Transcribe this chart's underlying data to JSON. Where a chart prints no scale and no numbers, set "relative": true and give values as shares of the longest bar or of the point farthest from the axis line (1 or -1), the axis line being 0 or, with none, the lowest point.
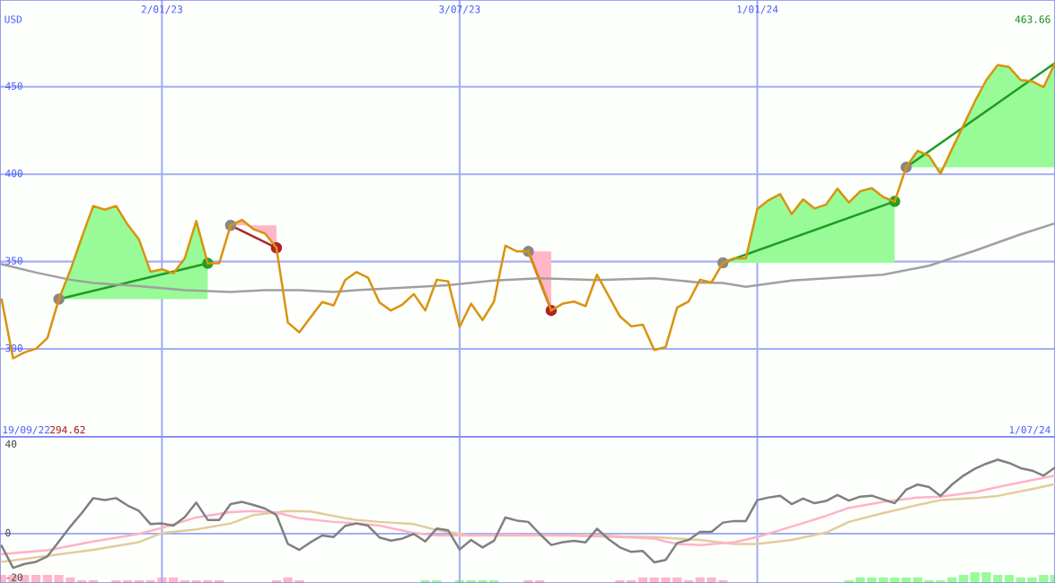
{
  "chart_data": [
    {
      "type": "line",
      "xlim": [
        "2022-09-25",
        "2024-07-01"
      ],
      "xticks": [
        {
          "value": "2023-01-02",
          "label": "2/01/23"
        },
        {
          "value": "2023-07-03",
          "label": "3/07/23"
        },
        {
          "value": "2024-01-01",
          "label": "1/01/24"
        }
      ],
      "ylim": [
        249.7,
        499.7
      ],
      "yticks": [
        300,
        350,
        400,
        450
      ],
      "grid": true,
      "annotations": [
        "USD",
        "463.66",
        "19/09/22",
        "294.62",
        "1/07/24"
      ],
      "series": [
        {
          "color": "#a0a0a0",
          "x": [
            "2022-09-26",
            "2022-10-17",
            "2022-11-07",
            "2022-11-21",
            "2022-12-19",
            "2023-01-16",
            "2023-02-13",
            "2023-03-06",
            "2023-03-27",
            "2023-04-17",
            "2023-05-01",
            "2023-05-29",
            "2023-06-26",
            "2023-07-24",
            "2023-08-21",
            "2023-09-25",
            "2023-10-30",
            "2023-11-27",
            "2023-12-11",
            "2023-12-25",
            "2024-01-22",
            "2024-02-19",
            "2024-03-18",
            "2024-04-15",
            "2024-05-13",
            "2024-06-10",
            "2024-07-01"
          ],
          "values": [
            348.5,
            343.7,
            339.6,
            337.7,
            336.0,
            333.6,
            332.6,
            333.6,
            333.6,
            332.6,
            333.6,
            335.1,
            336.5,
            339.1,
            340.4,
            339.4,
            340.4,
            338.0,
            337.7,
            335.6,
            339.1,
            340.8,
            342.5,
            347.6,
            356.2,
            365.6,
            371.9
          ]
        },
        {
          "color": "#d9930d",
          "x": [
            "2022-09-26",
            "2022-10-03",
            "2022-10-10",
            "2022-10-17",
            "2022-10-24",
            "2022-10-31"
          ],
          "values": [
            328.3,
            294.62,
            298.0,
            300.1,
            306.2,
            328.5
          ]
        },
        {
          "color": "#d9930d",
          "x": [
            "2022-10-31",
            "2022-11-07",
            "2022-11-14",
            "2022-11-21",
            "2022-11-28",
            "2022-12-05",
            "2022-12-12",
            "2022-12-19",
            "2022-12-26",
            "2023-01-02",
            "2023-01-09",
            "2023-01-16",
            "2023-01-23",
            "2023-01-30"
          ],
          "values": [
            328.5,
            345.0,
            363.8,
            381.8,
            379.7,
            381.8,
            371.2,
            362.6,
            344.2,
            345.6,
            343.3,
            351.9,
            373.2,
            349.0
          ],
          "lower": [
            328.5,
            328.5,
            328.5,
            328.5,
            328.5,
            328.5,
            328.5,
            328.5,
            328.5,
            328.5,
            328.5,
            328.5,
            328.5,
            328.5
          ],
          "upper": [
            328.5,
            345.0,
            363.8,
            381.8,
            379.7,
            381.8,
            371.2,
            362.6,
            344.2,
            345.6,
            343.3,
            351.9,
            373.2,
            349.0
          ]
        },
        {
          "color": "#d9930d",
          "x": [
            "2023-01-30",
            "2023-02-06",
            "2023-02-13"
          ],
          "values": [
            349.0,
            349.0,
            370.7
          ]
        },
        {
          "color": "#d9930d",
          "x": [
            "2023-02-13",
            "2023-02-20",
            "2023-02-27",
            "2023-03-06",
            "2023-03-13"
          ],
          "values": [
            370.7,
            373.8,
            368.5,
            366.1,
            357.9
          ],
          "lower": [
            370.7,
            370.7,
            370.7,
            370.7,
            370.7
          ],
          "upper": [
            370.7,
            373.8,
            368.5,
            366.1,
            357.9
          ]
        },
        {
          "color": "#d9930d",
          "x": [
            "2023-03-13",
            "2023-03-20",
            "2023-03-27",
            "2023-04-03",
            "2023-04-10",
            "2023-04-17",
            "2023-04-24",
            "2023-05-01",
            "2023-05-08",
            "2023-05-15",
            "2023-05-22",
            "2023-05-29",
            "2023-06-05",
            "2023-06-12",
            "2023-06-19",
            "2023-06-26",
            "2023-07-03",
            "2023-07-10",
            "2023-07-17",
            "2023-07-24",
            "2023-07-31",
            "2023-08-07",
            "2023-08-14"
          ],
          "values": [
            357.9,
            315.1,
            309.5,
            318.2,
            326.8,
            324.9,
            339.4,
            344.0,
            340.8,
            326.6,
            322.0,
            325.4,
            331.4,
            322.0,
            339.6,
            338.7,
            312.6,
            325.9,
            316.5,
            327.1,
            359.1,
            355.8,
            355.8
          ]
        },
        {
          "color": "#d9930d",
          "x": [
            "2023-08-14",
            "2023-08-21",
            "2023-08-28"
          ],
          "values": [
            355.8,
            339.7,
            322.0
          ],
          "lower": [
            355.8,
            355.8,
            355.8
          ],
          "upper": [
            355.8,
            339.7,
            322.0
          ]
        },
        {
          "color": "#d9930d",
          "x": [
            "2023-08-28",
            "2023-09-04",
            "2023-09-11",
            "2023-09-18",
            "2023-09-25",
            "2023-10-02",
            "2023-10-09",
            "2023-10-16",
            "2023-10-23",
            "2023-10-30",
            "2023-11-06",
            "2023-11-13",
            "2023-11-20",
            "2023-11-27",
            "2023-12-04",
            "2023-12-11"
          ],
          "values": [
            322.0,
            325.9,
            327.1,
            324.5,
            342.5,
            330.5,
            318.6,
            312.9,
            313.9,
            299.4,
            301.1,
            323.7,
            327.1,
            339.6,
            338.0,
            349.3
          ]
        },
        {
          "color": "#d9930d",
          "x": [
            "2023-12-11",
            "2023-12-18",
            "2023-12-25",
            "2024-01-01",
            "2024-01-08",
            "2024-01-15",
            "2024-01-22",
            "2024-01-29",
            "2024-02-05",
            "2024-02-12",
            "2024-02-19",
            "2024-02-26",
            "2024-03-04",
            "2024-03-11",
            "2024-03-18",
            "2024-03-25"
          ],
          "values": [
            349.3,
            351.9,
            351.9,
            380.1,
            385.2,
            388.6,
            377.2,
            385.6,
            380.4,
            382.6,
            391.7,
            383.8,
            390.3,
            392.0,
            386.9,
            384.4
          ],
          "lower": [
            349.3,
            349.3,
            349.3,
            349.3,
            349.3,
            349.3,
            349.3,
            349.3,
            349.3,
            349.3,
            349.3,
            349.3,
            349.3,
            349.3,
            349.3,
            349.3
          ],
          "upper": [
            349.3,
            351.9,
            351.9,
            380.1,
            385.2,
            388.6,
            377.2,
            385.6,
            380.4,
            382.6,
            391.7,
            383.8,
            390.3,
            392.0,
            386.9,
            384.4
          ]
        },
        {
          "color": "#d9930d",
          "x": [
            "2024-03-25",
            "2024-04-01"
          ],
          "values": [
            384.4,
            404.0
          ]
        },
        {
          "color": "#d9930d",
          "x": [
            "2024-04-01",
            "2024-04-08",
            "2024-04-15",
            "2024-04-22",
            "2024-04-29",
            "2024-05-06",
            "2024-05-13",
            "2024-05-20",
            "2024-05-27",
            "2024-06-03",
            "2024-06-10",
            "2024-06-17",
            "2024-06-24",
            "2024-07-01"
          ],
          "values": [
            404.0,
            413.4,
            410.5,
            400.3,
            414.3,
            427.9,
            441.6,
            453.9,
            462.5,
            461.3,
            453.9,
            453.2,
            449.8,
            463.66
          ],
          "lower": [
            404.0,
            404.0,
            404.0,
            404.0,
            404.0,
            404.0,
            404.0,
            404.0,
            404.0,
            404.0,
            404.0,
            404.0,
            404.0,
            404.0
          ],
          "upper": [
            404.0,
            413.4,
            410.5,
            400.3,
            414.3,
            427.9,
            441.6,
            453.9,
            462.5,
            461.3,
            453.9,
            453.2,
            449.8,
            463.66
          ]
        },
        {
          "color": "#229a22",
          "marker": "circle",
          "x": [
            "2022-10-31",
            "2023-01-30"
          ],
          "values": [
            328.5,
            349.0
          ],
          "colors": [
            "#888888",
            "#22a022"
          ]
        },
        {
          "color": "#a52a2a",
          "marker": "circle",
          "x": [
            "2023-02-13",
            "2023-03-13"
          ],
          "values": [
            370.7,
            357.9
          ],
          "colors": [
            "#888888",
            "#b22222"
          ]
        },
        {
          "color": "#a52a2a",
          "marker": "circle",
          "x": [
            "2023-08-14",
            "2023-08-28"
          ],
          "values": [
            355.8,
            322.0
          ],
          "colors": [
            "#888888",
            "#b22222"
          ]
        },
        {
          "color": "#229a22",
          "marker": "circle",
          "x": [
            "2023-12-11",
            "2024-03-25"
          ],
          "values": [
            349.3,
            384.4
          ],
          "colors": [
            "#888888",
            "#22a022"
          ]
        },
        {
          "color": "#229a22",
          "marker": "circle",
          "x": [
            "2024-04-01",
            "2024-07-01"
          ],
          "values": [
            404.0,
            463.66
          ],
          "colors": [
            "#888888",
            null
          ]
        }
      ]
    },
    {
      "type": "line",
      "xlim": [
        "2022-09-25",
        "2024-07-01"
      ],
      "xticks": [
        {
          "value": "2023-01-02",
          "label": null
        },
        {
          "value": "2023-07-03",
          "label": null
        },
        {
          "value": "2024-01-01",
          "label": null
        }
      ],
      "ylim": [
        -22.2,
        43.6
      ],
      "yticks": [
        -20,
        0,
        40
      ],
      "grid": "x",
      "tick_labels": "y",
      "ref_lines": [
        {
          "axis": "y",
          "value": 0
        }
      ],
      "series": [
        {
          "color": "#e3cc9c",
          "x": [
            "2022-09-26",
            "2022-10-24",
            "2022-11-21",
            "2022-12-19",
            "2023-01-02",
            "2023-01-23",
            "2023-02-13",
            "2023-02-27",
            "2023-03-20",
            "2023-04-03",
            "2023-04-24",
            "2023-05-01",
            "2023-05-15",
            "2023-06-05",
            "2023-06-19",
            "2023-07-10",
            "2023-07-31",
            "2023-09-04",
            "2023-09-18",
            "2023-10-09",
            "2023-10-30",
            "2023-11-13",
            "2023-11-27",
            "2023-12-18",
            "2024-01-01",
            "2024-01-22",
            "2024-02-12",
            "2024-02-26",
            "2024-03-18",
            "2024-04-08",
            "2024-04-22",
            "2024-05-13",
            "2024-05-27",
            "2024-06-17",
            "2024-07-01"
          ],
          "values": [
            -12.7,
            -10.0,
            -7.3,
            -3.8,
            0.3,
            1.9,
            4.6,
            8.4,
            10.2,
            10.0,
            7.0,
            6.2,
            5.3,
            4.3,
            1.6,
            -0.8,
            -0.8,
            -0.8,
            -0.5,
            -1.2,
            -1.5,
            -2.2,
            -2.8,
            -4.6,
            -4.6,
            -2.8,
            0.5,
            5.3,
            9.3,
            12.9,
            15.1,
            16.0,
            17.0,
            20.1,
            22.3
          ]
        },
        {
          "color": "#ffb3c6",
          "x": [
            "2022-09-26",
            "2022-10-24",
            "2022-11-21",
            "2022-12-19",
            "2023-01-02",
            "2023-01-23",
            "2023-02-13",
            "2023-02-27",
            "2023-03-13",
            "2023-03-27",
            "2023-04-17",
            "2023-05-01",
            "2023-05-15",
            "2023-06-05",
            "2023-06-19",
            "2023-07-10",
            "2023-07-31",
            "2023-09-04",
            "2023-10-09",
            "2023-10-30",
            "2023-11-06",
            "2023-11-13",
            "2023-11-27",
            "2023-12-18",
            "2024-01-01",
            "2024-01-22",
            "2024-02-12",
            "2024-02-26",
            "2024-03-18",
            "2024-04-08",
            "2024-04-22",
            "2024-05-13",
            "2024-05-27",
            "2024-06-17",
            "2024-07-01"
          ],
          "values": [
            -9.2,
            -7.5,
            -3.5,
            -0.1,
            2.6,
            7.3,
            9.7,
            10.2,
            9.5,
            7.0,
            5.3,
            4.6,
            3.6,
            0.3,
            -0.8,
            -0.8,
            -0.5,
            -0.8,
            -1.5,
            -2.2,
            -3.5,
            -4.6,
            -5.1,
            -3.8,
            -1.5,
            3.2,
            8.0,
            11.6,
            14.3,
            16.3,
            16.7,
            18.7,
            21.0,
            24.1,
            26.1
          ]
        },
        {
          "color": "#808080",
          "x": [
            "2022-09-26",
            "2022-10-03",
            "2022-10-10",
            "2022-10-17",
            "2022-10-24",
            "2022-10-31",
            "2022-11-07",
            "2022-11-14",
            "2022-11-21",
            "2022-11-28",
            "2022-12-05",
            "2022-12-12",
            "2022-12-19",
            "2022-12-26",
            "2023-01-02",
            "2023-01-09",
            "2023-01-16",
            "2023-01-23",
            "2023-01-30",
            "2023-02-06",
            "2023-02-13",
            "2023-02-20",
            "2023-02-27",
            "2023-03-06",
            "2023-03-13",
            "2023-03-20",
            "2023-03-27",
            "2023-04-03",
            "2023-04-10",
            "2023-04-17",
            "2023-04-24",
            "2023-05-01",
            "2023-05-08",
            "2023-05-15",
            "2023-05-22",
            "2023-05-29",
            "2023-06-05",
            "2023-06-12",
            "2023-06-19",
            "2023-06-26",
            "2023-07-03",
            "2023-07-10",
            "2023-07-17",
            "2023-07-24",
            "2023-07-31",
            "2023-08-07",
            "2023-08-14",
            "2023-08-21",
            "2023-08-28",
            "2023-09-04",
            "2023-09-11",
            "2023-09-18",
            "2023-09-25",
            "2023-10-02",
            "2023-10-09",
            "2023-10-16",
            "2023-10-23",
            "2023-10-30",
            "2023-11-06",
            "2023-11-13",
            "2023-11-20",
            "2023-11-27",
            "2023-12-04",
            "2023-12-11",
            "2023-12-18",
            "2023-12-25",
            "2024-01-01",
            "2024-01-08",
            "2024-01-15",
            "2024-01-22",
            "2024-01-29",
            "2024-02-05",
            "2024-02-12",
            "2024-02-19",
            "2024-02-26",
            "2024-03-04",
            "2024-03-11",
            "2024-03-18",
            "2024-03-25",
            "2024-04-01",
            "2024-04-08",
            "2024-04-15",
            "2024-04-22",
            "2024-04-29",
            "2024-05-06",
            "2024-05-13",
            "2024-05-20",
            "2024-05-27",
            "2024-06-03",
            "2024-06-10",
            "2024-06-17",
            "2024-06-24",
            "2024-07-01"
          ],
          "values": [
            -5.5,
            -15.4,
            -13.6,
            -12.7,
            -10.2,
            -3.5,
            3.2,
            9.3,
            16.0,
            15.1,
            16.0,
            12.7,
            10.2,
            4.3,
            4.6,
            3.6,
            7.5,
            14.0,
            6.2,
            6.2,
            13.3,
            14.3,
            12.9,
            11.3,
            8.4,
            -4.6,
            -7.3,
            -3.8,
            -0.8,
            -1.5,
            3.5,
            4.6,
            3.6,
            -1.7,
            -3.1,
            -2.2,
            -0.1,
            -3.5,
            2.3,
            1.5,
            -7.1,
            -2.8,
            -6.2,
            -3.2,
            7.3,
            5.9,
            5.3,
            -0.1,
            -5.1,
            -3.8,
            -3.2,
            -3.9,
            2.2,
            -2.4,
            -6.2,
            -8.2,
            -7.8,
            -12.9,
            -11.8,
            -4.2,
            -2.8,
            0.8,
            0.8,
            5.0,
            5.7,
            5.7,
            15.1,
            16.3,
            17.1,
            13.3,
            15.8,
            13.7,
            14.7,
            17.4,
            14.9,
            16.7,
            17.1,
            15.4,
            13.7,
            19.8,
            22.1,
            21.0,
            17.0,
            22.1,
            26.1,
            29.2,
            31.5,
            33.3,
            31.8,
            29.5,
            28.4,
            26.1,
            29.8
          ]
        }
      ]
    },
    {
      "type": "bar",
      "relative": true,
      "xlim": [
        "2022-09-25",
        "2024-07-01"
      ],
      "series": [
        {
          "color": "#ffb6c8",
          "x": [
            "2022-09-26",
            "2022-10-03",
            "2022-10-10",
            "2022-10-17",
            "2022-10-24",
            "2022-10-31",
            "2022-11-07",
            "2022-11-14",
            "2022-11-21",
            "2022-12-05",
            "2022-12-12",
            "2022-12-19",
            "2022-12-26",
            "2023-01-02",
            "2023-01-09",
            "2023-01-16",
            "2023-01-23",
            "2023-01-30",
            "2023-02-06",
            "2023-03-13",
            "2023-03-20",
            "2023-03-27",
            "2023-08-14",
            "2023-08-21",
            "2023-10-09",
            "2023-10-16",
            "2023-10-23",
            "2023-10-30",
            "2023-11-06",
            "2023-11-13",
            "2023-11-20",
            "2023-11-27",
            "2023-12-04",
            "2023-12-11"
          ],
          "values": [
            0.75,
            0.75,
            0.75,
            0.75,
            0.75,
            0.75,
            0.52,
            0.25,
            0.25,
            0.25,
            0.25,
            0.25,
            0.25,
            0.52,
            0.52,
            0.25,
            0.25,
            0.25,
            0.25,
            0.25,
            0.52,
            0.25,
            0.25,
            0.25,
            0.25,
            0.25,
            0.52,
            0.52,
            0.52,
            0.52,
            0.25,
            0.52,
            0.52,
            0.25
          ]
        },
        {
          "color": "#98fb98",
          "x": [
            "2023-06-12",
            "2023-06-19",
            "2023-07-03",
            "2023-07-10",
            "2023-07-17",
            "2023-07-24",
            "2024-02-26",
            "2024-03-04",
            "2024-03-11",
            "2024-03-18",
            "2024-03-25",
            "2024-04-01",
            "2024-04-08",
            "2024-04-15",
            "2024-04-22",
            "2024-04-29",
            "2024-05-06",
            "2024-05-13",
            "2024-05-20",
            "2024-05-27",
            "2024-06-03",
            "2024-06-10",
            "2024-06-17",
            "2024-06-24",
            "2024-07-01"
          ],
          "values": [
            0.25,
            0.25,
            0.25,
            0.25,
            0.25,
            0.25,
            0.25,
            0.52,
            0.52,
            0.52,
            0.52,
            0.52,
            0.52,
            0.25,
            0.25,
            0.52,
            0.75,
            1,
            1,
            0.75,
            0.75,
            0.52,
            0.52,
            0.75,
            0.75
          ]
        }
      ]
    }
  ]
}
